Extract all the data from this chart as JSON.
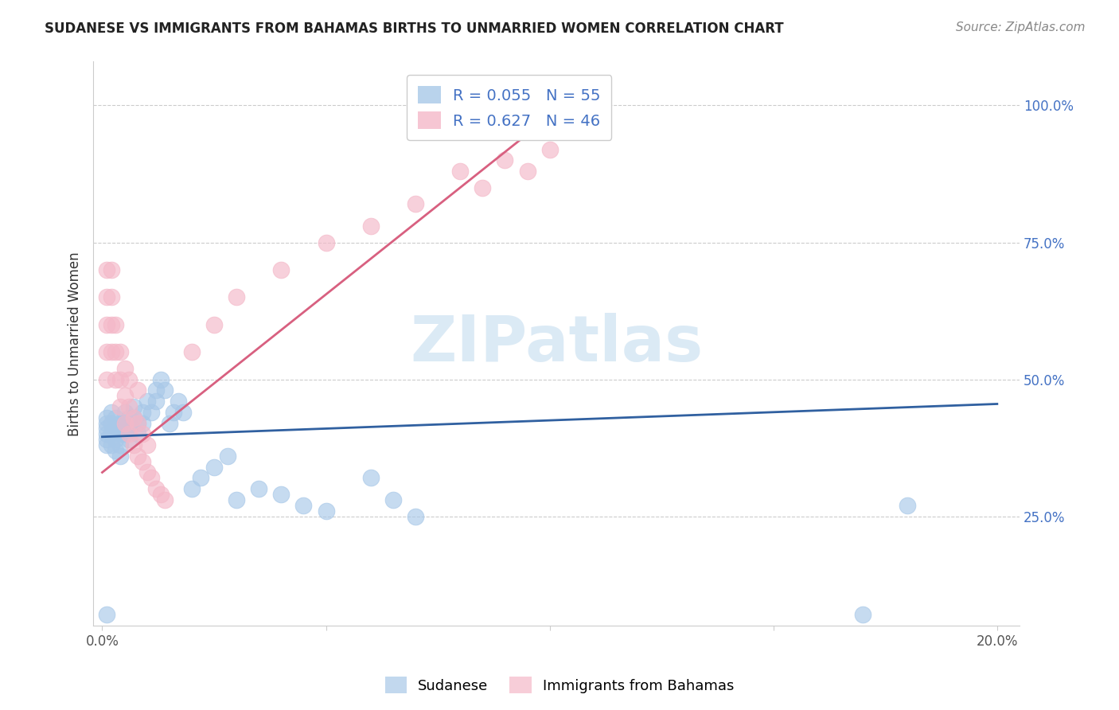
{
  "title": "SUDANESE VS IMMIGRANTS FROM BAHAMAS BIRTHS TO UNMARRIED WOMEN CORRELATION CHART",
  "source": "Source: ZipAtlas.com",
  "ylabel": "Births to Unmarried Women",
  "xlim": [
    -0.002,
    0.205
  ],
  "ylim": [
    0.05,
    1.08
  ],
  "xtick_positions": [
    0.0,
    0.05,
    0.1,
    0.15,
    0.2
  ],
  "xtick_labels": [
    "0.0%",
    "",
    "",
    "",
    "20.0%"
  ],
  "ytick_positions": [
    0.25,
    0.5,
    0.75,
    1.0
  ],
  "ytick_labels": [
    "25.0%",
    "50.0%",
    "75.0%",
    "100.0%"
  ],
  "blue_R": 0.055,
  "blue_N": 55,
  "pink_R": 0.627,
  "pink_N": 46,
  "blue_color": "#a8c8e8",
  "pink_color": "#f4b8c8",
  "blue_line_color": "#3060a0",
  "pink_line_color": "#d86080",
  "legend_label_blue": "Sudanese",
  "legend_label_pink": "Immigrants from Bahamas",
  "legend_text_color": "#4472c4",
  "watermark_text": "ZIPatlas",
  "watermark_color": "#d8e8f4",
  "title_fontsize": 12,
  "source_fontsize": 11,
  "tick_fontsize": 12,
  "ylabel_fontsize": 12,
  "blue_scatter_x": [
    0.001,
    0.001,
    0.001,
    0.001,
    0.001,
    0.001,
    0.002,
    0.002,
    0.002,
    0.002,
    0.003,
    0.003,
    0.003,
    0.003,
    0.004,
    0.004,
    0.004,
    0.004,
    0.005,
    0.005,
    0.005,
    0.006,
    0.006,
    0.006,
    0.007,
    0.007,
    0.008,
    0.008,
    0.009,
    0.009,
    0.01,
    0.011,
    0.012,
    0.012,
    0.013,
    0.014,
    0.015,
    0.016,
    0.017,
    0.018,
    0.02,
    0.022,
    0.025,
    0.028,
    0.03,
    0.035,
    0.04,
    0.045,
    0.05,
    0.06,
    0.065,
    0.07,
    0.001,
    0.17,
    0.18
  ],
  "blue_scatter_y": [
    0.42,
    0.41,
    0.43,
    0.4,
    0.39,
    0.38,
    0.4,
    0.42,
    0.44,
    0.38,
    0.41,
    0.43,
    0.39,
    0.37,
    0.42,
    0.4,
    0.38,
    0.36,
    0.44,
    0.42,
    0.4,
    0.43,
    0.41,
    0.39,
    0.45,
    0.43,
    0.42,
    0.4,
    0.44,
    0.42,
    0.46,
    0.44,
    0.48,
    0.46,
    0.5,
    0.48,
    0.42,
    0.44,
    0.46,
    0.44,
    0.3,
    0.32,
    0.34,
    0.36,
    0.28,
    0.3,
    0.29,
    0.27,
    0.26,
    0.32,
    0.28,
    0.25,
    0.07,
    0.07,
    0.27
  ],
  "pink_scatter_x": [
    0.001,
    0.001,
    0.001,
    0.001,
    0.001,
    0.002,
    0.002,
    0.002,
    0.002,
    0.003,
    0.003,
    0.003,
    0.004,
    0.004,
    0.004,
    0.005,
    0.005,
    0.005,
    0.006,
    0.006,
    0.006,
    0.007,
    0.007,
    0.008,
    0.008,
    0.008,
    0.009,
    0.009,
    0.01,
    0.01,
    0.011,
    0.012,
    0.013,
    0.014,
    0.02,
    0.025,
    0.03,
    0.04,
    0.05,
    0.06,
    0.07,
    0.08,
    0.085,
    0.09,
    0.095,
    0.1
  ],
  "pink_scatter_y": [
    0.5,
    0.55,
    0.6,
    0.65,
    0.7,
    0.55,
    0.6,
    0.65,
    0.7,
    0.5,
    0.55,
    0.6,
    0.45,
    0.5,
    0.55,
    0.42,
    0.47,
    0.52,
    0.4,
    0.45,
    0.5,
    0.38,
    0.43,
    0.36,
    0.42,
    0.48,
    0.35,
    0.4,
    0.33,
    0.38,
    0.32,
    0.3,
    0.29,
    0.28,
    0.55,
    0.6,
    0.65,
    0.7,
    0.75,
    0.78,
    0.82,
    0.88,
    0.85,
    0.9,
    0.88,
    0.92
  ],
  "blue_line_x": [
    0.0,
    0.2
  ],
  "blue_line_y": [
    0.395,
    0.455
  ],
  "pink_line_x": [
    0.0,
    0.1
  ],
  "pink_line_y": [
    0.33,
    0.98
  ]
}
